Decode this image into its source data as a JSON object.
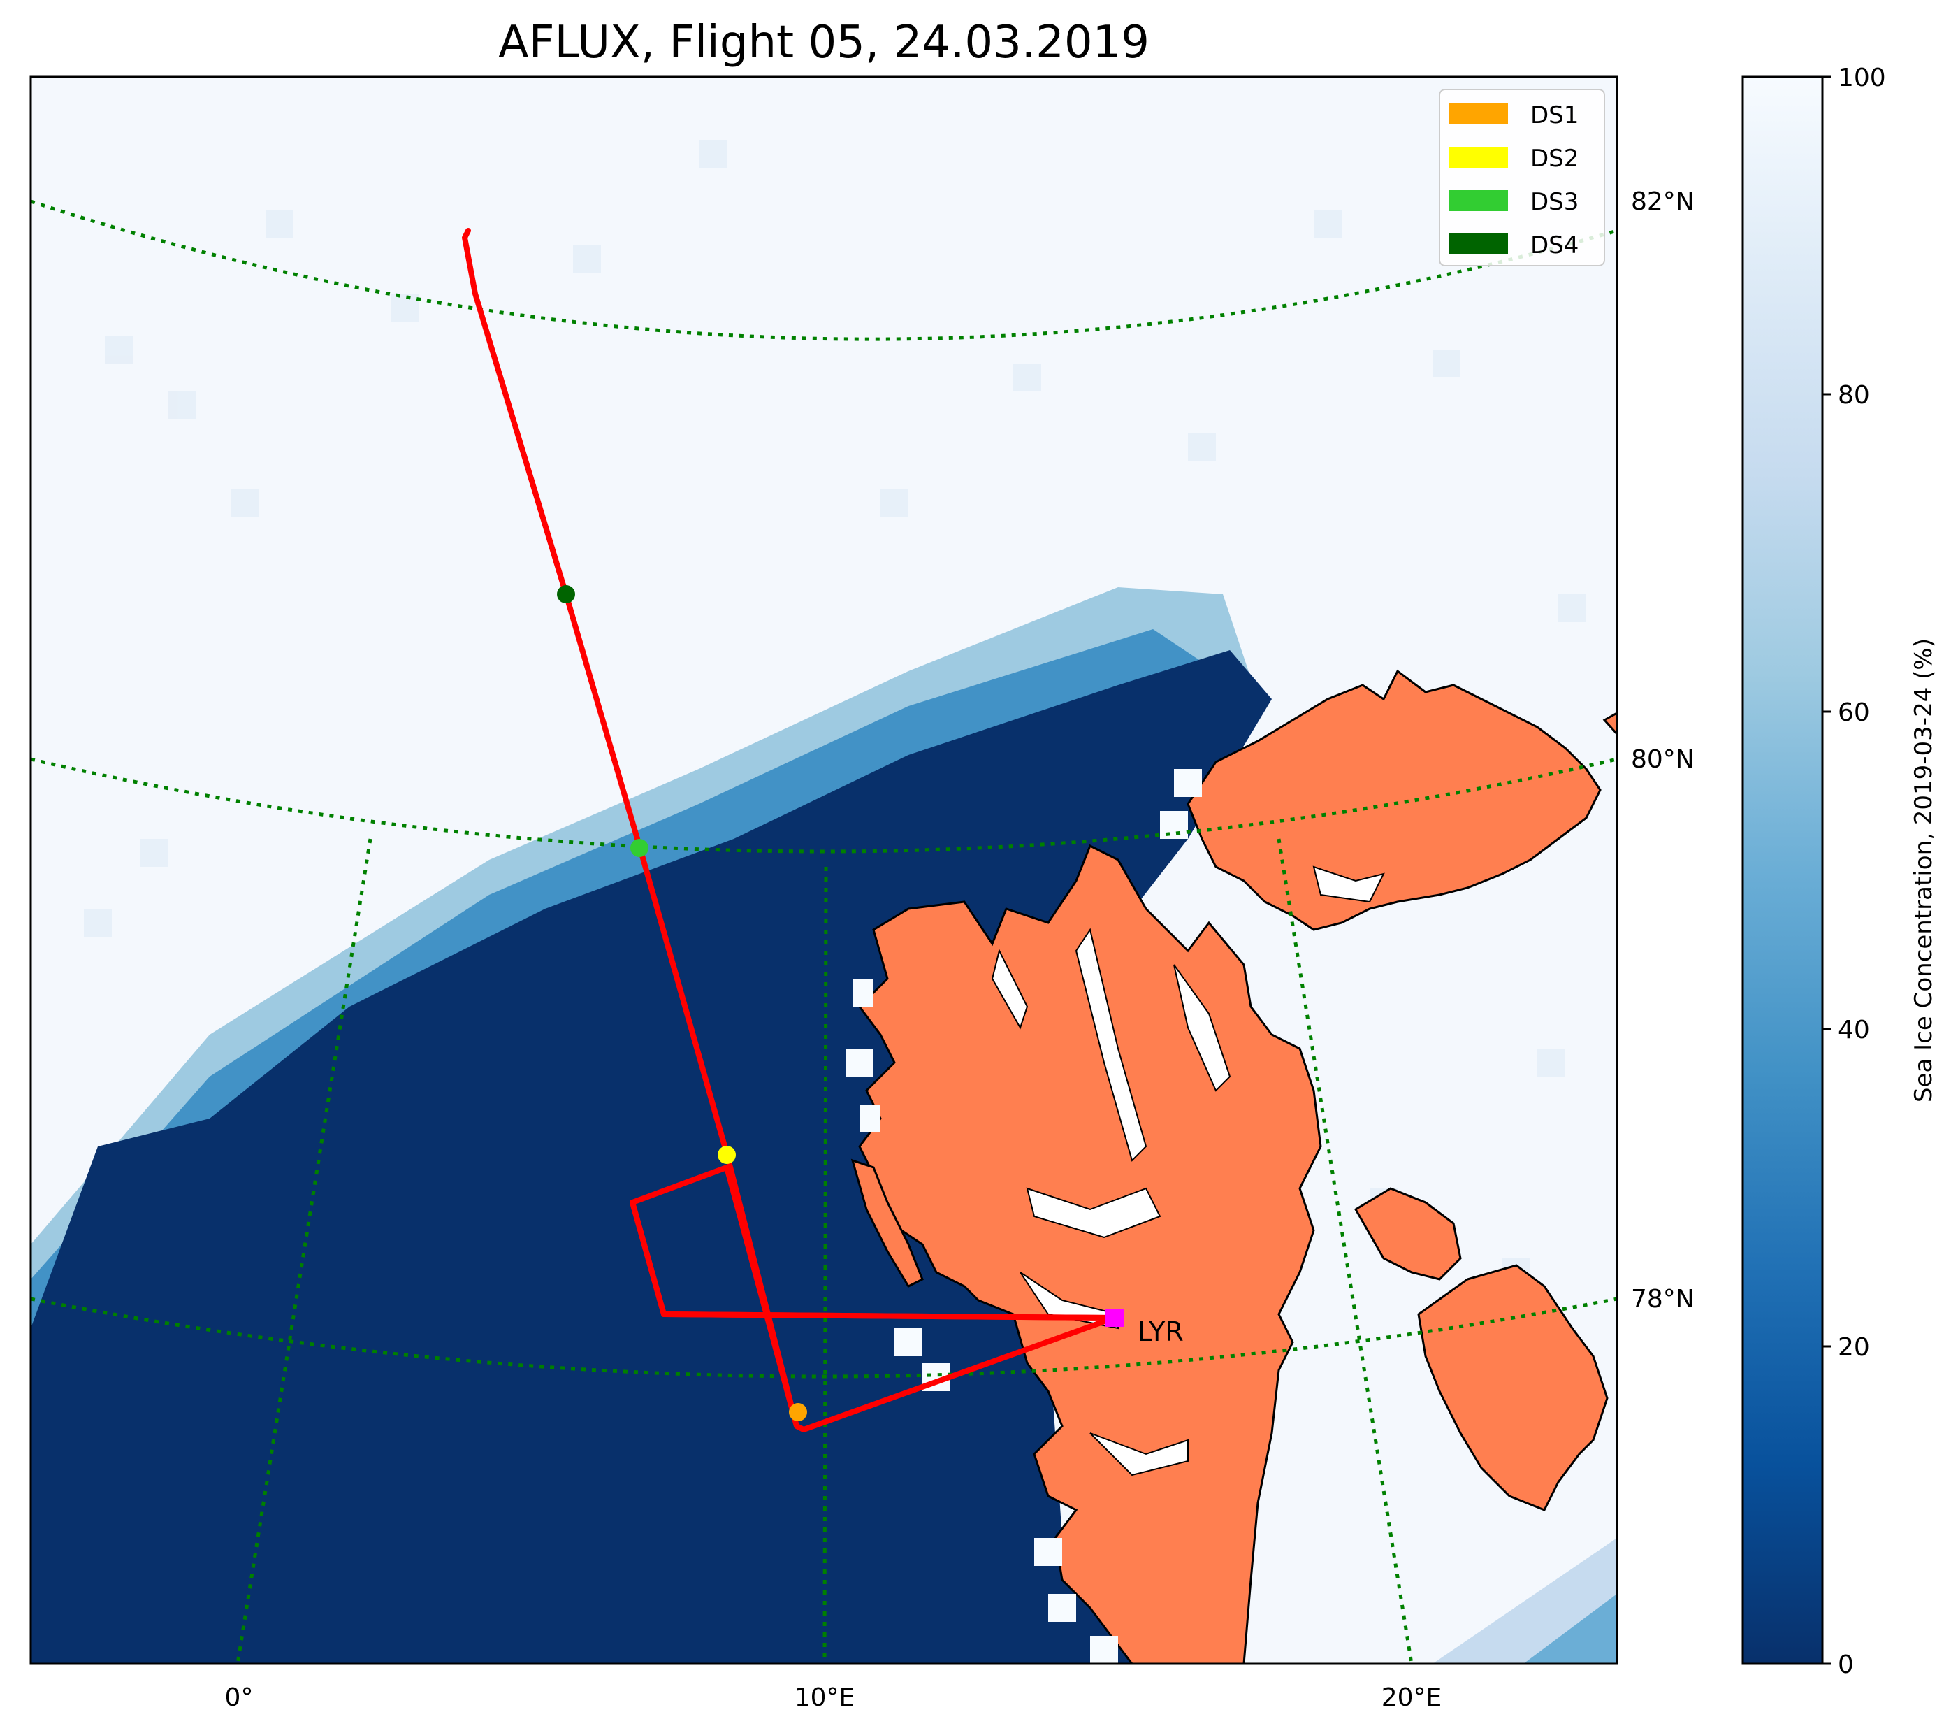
{
  "title": "AFLUX, Flight 05, 24.03.2019",
  "lon_labels": [
    "0°",
    "10°E",
    "20°E"
  ],
  "lat_labels": [
    "82°N",
    "80°N",
    "78°N"
  ],
  "legend": [
    {
      "label": "DS1",
      "color": "#ffa500"
    },
    {
      "label": "DS2",
      "color": "#ffff00"
    },
    {
      "label": "DS3",
      "color": "#32cd32"
    },
    {
      "label": "DS4",
      "color": "#006400"
    }
  ],
  "city": {
    "name": "LYR",
    "marker_color": "#ff00ff"
  },
  "colorbar": {
    "label": "Sea Ice Concentration, 2019-03-24 (%)",
    "ticks": [
      "0",
      "20",
      "40",
      "60",
      "80",
      "100"
    ],
    "range": [
      0,
      100
    ],
    "colormap": "Blues_r"
  },
  "colors": {
    "open_water": "#08306b",
    "sea_ice": "#f4f8fd",
    "land": "#ff7f50",
    "track": "#ff0000",
    "graticule": "#008000"
  }
}
